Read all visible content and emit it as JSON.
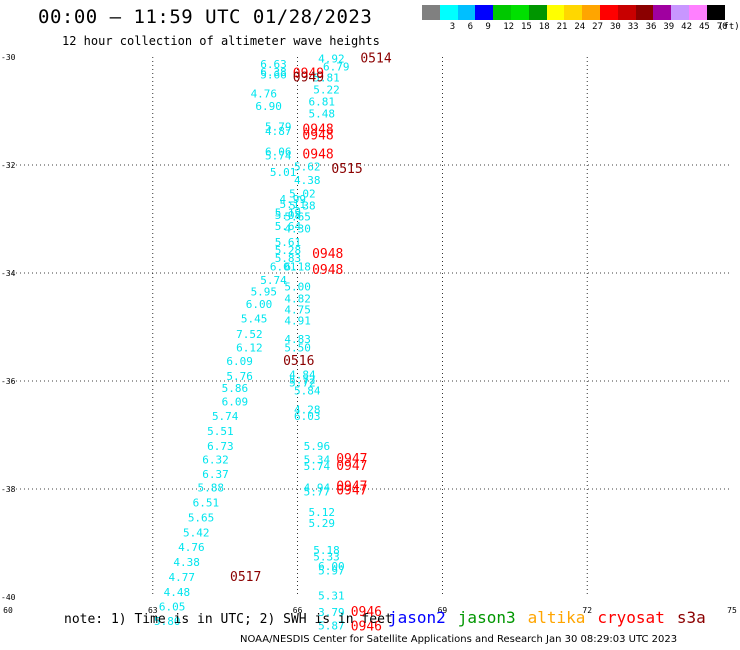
{
  "title": "00:00 – 11:59 UTC 01/28/2023",
  "subtitle": "12 hour collection of altimeter wave heights",
  "colorbar": {
    "unit": "(ft)",
    "bins": [
      {
        "label": "",
        "color": "#808080"
      },
      {
        "label": "3",
        "color": "#00ffff"
      },
      {
        "label": "6",
        "color": "#00bfff"
      },
      {
        "label": "9",
        "color": "#0000ff"
      },
      {
        "label": "12",
        "color": "#00c800"
      },
      {
        "label": "15",
        "color": "#00e000"
      },
      {
        "label": "18",
        "color": "#009600"
      },
      {
        "label": "21",
        "color": "#ffff00"
      },
      {
        "label": "24",
        "color": "#ffd700"
      },
      {
        "label": "27",
        "color": "#ffa500"
      },
      {
        "label": "30",
        "color": "#ff0000"
      },
      {
        "label": "33",
        "color": "#c80000"
      },
      {
        "label": "36",
        "color": "#8b0000"
      },
      {
        "label": "39",
        "color": "#a000a0"
      },
      {
        "label": "42",
        "color": "#c896ff"
      },
      {
        "label": "45",
        "color": "#ff80ff"
      },
      {
        "label": "70",
        "color": "#000000"
      }
    ]
  },
  "note": "note: 1) Time is in UTC; 2) SWH is in feet",
  "legend": [
    {
      "name": "jason2",
      "color": "#0000ff"
    },
    {
      "name": "jason3",
      "color": "#009600"
    },
    {
      "name": "altika",
      "color": "#ffa500"
    },
    {
      "name": "cryosat",
      "color": "#ff0000"
    },
    {
      "name": "s3a",
      "color": "#8b0000"
    }
  ],
  "footer": "NOAA/NESDIS Center for Satellite Applications and Research   Jan 30 08:29:03 UTC 2023",
  "chart_data": {
    "type": "scatter",
    "xlim": [
      60,
      75
    ],
    "ylim": [
      -40,
      -30
    ],
    "x_ticks": [
      "60",
      "63",
      "66",
      "69",
      "72",
      "75"
    ],
    "y_ticks": [
      "-30",
      "-32",
      "-34",
      "-36",
      "-38",
      "-40"
    ],
    "grid": true,
    "wave_color": "#00e5ee",
    "wave_heights": [
      {
        "x": 66.7,
        "y": -30.1,
        "label": "4.92"
      },
      {
        "x": 66.8,
        "y": -30.25,
        "label": "6.79"
      },
      {
        "x": 66.6,
        "y": -30.45,
        "label": "5.81"
      },
      {
        "x": 66.6,
        "y": -30.68,
        "label": "5.22"
      },
      {
        "x": 66.5,
        "y": -30.9,
        "label": "6.81"
      },
      {
        "x": 66.5,
        "y": -31.12,
        "label": "5.48"
      },
      {
        "x": 65.5,
        "y": -30.2,
        "label": "6.63"
      },
      {
        "x": 65.5,
        "y": -30.35,
        "label": "6.38"
      },
      {
        "x": 65.5,
        "y": -30.4,
        "label": "5.66"
      },
      {
        "x": 65.3,
        "y": -30.75,
        "label": "4.76"
      },
      {
        "x": 65.4,
        "y": -30.98,
        "label": "6.90"
      },
      {
        "x": 65.6,
        "y": -31.36,
        "label": "5.79"
      },
      {
        "x": 65.6,
        "y": -31.44,
        "label": "4.87"
      },
      {
        "x": 65.6,
        "y": -31.82,
        "label": "6.06"
      },
      {
        "x": 65.6,
        "y": -31.9,
        "label": "5.74"
      },
      {
        "x": 65.7,
        "y": -32.2,
        "label": "5.01"
      },
      {
        "x": 66.2,
        "y": -32.1,
        "label": "5.62"
      },
      {
        "x": 66.2,
        "y": -32.35,
        "label": "4.38"
      },
      {
        "x": 66.1,
        "y": -32.6,
        "label": "5.02"
      },
      {
        "x": 65.9,
        "y": -32.7,
        "label": "4.99"
      },
      {
        "x": 65.9,
        "y": -32.8,
        "label": "5.11"
      },
      {
        "x": 66.1,
        "y": -32.82,
        "label": "5.38"
      },
      {
        "x": 65.8,
        "y": -32.95,
        "label": "5.19"
      },
      {
        "x": 65.8,
        "y": -33.0,
        "label": "5.08"
      },
      {
        "x": 66.0,
        "y": -33.03,
        "label": "5.65"
      },
      {
        "x": 65.8,
        "y": -33.2,
        "label": "5.64"
      },
      {
        "x": 66.0,
        "y": -33.25,
        "label": "4.30"
      },
      {
        "x": 65.8,
        "y": -33.5,
        "label": "5.61"
      },
      {
        "x": 65.8,
        "y": -33.65,
        "label": "5.28"
      },
      {
        "x": 65.8,
        "y": -33.8,
        "label": "5.83"
      },
      {
        "x": 65.7,
        "y": -33.95,
        "label": "6.01"
      },
      {
        "x": 66.0,
        "y": -33.95,
        "label": "6.18"
      },
      {
        "x": 65.5,
        "y": -34.2,
        "label": "5.74"
      },
      {
        "x": 66.0,
        "y": -34.32,
        "label": "5.00"
      },
      {
        "x": 65.3,
        "y": -34.42,
        "label": "5.95"
      },
      {
        "x": 66.0,
        "y": -34.55,
        "label": "4.82"
      },
      {
        "x": 65.2,
        "y": -34.65,
        "label": "6.00"
      },
      {
        "x": 66.0,
        "y": -34.75,
        "label": "4.75"
      },
      {
        "x": 65.1,
        "y": -34.92,
        "label": "5.45"
      },
      {
        "x": 66.0,
        "y": -34.95,
        "label": "4.91"
      },
      {
        "x": 65.0,
        "y": -35.2,
        "label": "7.52"
      },
      {
        "x": 66.0,
        "y": -35.3,
        "label": "4.83"
      },
      {
        "x": 65.0,
        "y": -35.45,
        "label": "6.12"
      },
      {
        "x": 66.0,
        "y": -35.45,
        "label": "5.50"
      },
      {
        "x": 64.8,
        "y": -35.7,
        "label": "6.09"
      },
      {
        "x": 64.8,
        "y": -35.98,
        "label": "5.76"
      },
      {
        "x": 66.1,
        "y": -35.95,
        "label": "4.84"
      },
      {
        "x": 66.1,
        "y": -36.05,
        "label": "5.72"
      },
      {
        "x": 66.1,
        "y": -36.1,
        "label": "5.72"
      },
      {
        "x": 64.7,
        "y": -36.2,
        "label": "5.86"
      },
      {
        "x": 66.2,
        "y": -36.25,
        "label": "5.84"
      },
      {
        "x": 64.7,
        "y": -36.45,
        "label": "6.09"
      },
      {
        "x": 66.2,
        "y": -36.6,
        "label": "4.28"
      },
      {
        "x": 64.5,
        "y": -36.72,
        "label": "5.74"
      },
      {
        "x": 66.2,
        "y": -36.72,
        "label": "6.03"
      },
      {
        "x": 64.4,
        "y": -37.0,
        "label": "5.51"
      },
      {
        "x": 64.4,
        "y": -37.28,
        "label": "6.73"
      },
      {
        "x": 66.4,
        "y": -37.28,
        "label": "5.96"
      },
      {
        "x": 64.3,
        "y": -37.53,
        "label": "6.32"
      },
      {
        "x": 66.4,
        "y": -37.53,
        "label": "5.34"
      },
      {
        "x": 66.4,
        "y": -37.65,
        "label": "5.74"
      },
      {
        "x": 64.3,
        "y": -37.8,
        "label": "6.37"
      },
      {
        "x": 64.2,
        "y": -38.05,
        "label": "5.88"
      },
      {
        "x": 66.4,
        "y": -38.05,
        "label": "4.94"
      },
      {
        "x": 66.4,
        "y": -38.12,
        "label": "5.77"
      },
      {
        "x": 64.1,
        "y": -38.32,
        "label": "6.51"
      },
      {
        "x": 66.5,
        "y": -38.5,
        "label": "5.12"
      },
      {
        "x": 64.0,
        "y": -38.6,
        "label": "5.65"
      },
      {
        "x": 66.5,
        "y": -38.7,
        "label": "5.29"
      },
      {
        "x": 63.9,
        "y": -38.88,
        "label": "5.42"
      },
      {
        "x": 63.8,
        "y": -39.15,
        "label": "4.76"
      },
      {
        "x": 66.6,
        "y": -39.2,
        "label": "5.18"
      },
      {
        "x": 66.6,
        "y": -39.32,
        "label": "5.33"
      },
      {
        "x": 63.7,
        "y": -39.43,
        "label": "4.38"
      },
      {
        "x": 66.7,
        "y": -39.5,
        "label": "6.00"
      },
      {
        "x": 66.7,
        "y": -39.58,
        "label": "5.97"
      },
      {
        "x": 63.6,
        "y": -39.7,
        "label": "4.77"
      },
      {
        "x": 63.5,
        "y": -39.98,
        "label": "4.48"
      },
      {
        "x": 66.7,
        "y": -40.05,
        "label": "5.31"
      },
      {
        "x": 63.4,
        "y": -40.25,
        "label": "6.05"
      },
      {
        "x": 66.7,
        "y": -40.35,
        "label": "3.79"
      },
      {
        "x": 63.3,
        "y": -40.52,
        "label": "5.80"
      },
      {
        "x": 66.7,
        "y": -40.6,
        "label": "5.87"
      }
    ],
    "pass_times": [
      {
        "x": 67.3,
        "y": -30.1,
        "label": "0514",
        "color": "#8b0000"
      },
      {
        "x": 65.9,
        "y": -30.38,
        "label": "0949",
        "color": "#ff0000"
      },
      {
        "x": 65.9,
        "y": -30.45,
        "label": "0949",
        "color": "#8b0000"
      },
      {
        "x": 66.1,
        "y": -31.42,
        "label": "0948",
        "color": "#ff0000"
      },
      {
        "x": 66.1,
        "y": -31.53,
        "label": "0948",
        "color": "#ff0000"
      },
      {
        "x": 66.1,
        "y": -31.88,
        "label": "0948",
        "color": "#ff0000"
      },
      {
        "x": 66.7,
        "y": -32.15,
        "label": "0515",
        "color": "#8b0000"
      },
      {
        "x": 66.3,
        "y": -33.72,
        "label": "0948",
        "color": "#ff0000"
      },
      {
        "x": 66.3,
        "y": -34.02,
        "label": "0948",
        "color": "#ff0000"
      },
      {
        "x": 65.7,
        "y": -35.7,
        "label": "0516",
        "color": "#8b0000"
      },
      {
        "x": 66.8,
        "y": -37.52,
        "label": "0947",
        "color": "#ff0000"
      },
      {
        "x": 66.8,
        "y": -37.65,
        "label": "0947",
        "color": "#ff0000"
      },
      {
        "x": 66.8,
        "y": -38.03,
        "label": "0947",
        "color": "#ff0000"
      },
      {
        "x": 66.8,
        "y": -38.1,
        "label": "0947",
        "color": "#ff0000"
      },
      {
        "x": 64.6,
        "y": -39.7,
        "label": "0517",
        "color": "#8b0000"
      },
      {
        "x": 67.1,
        "y": -40.35,
        "label": "0946",
        "color": "#ff0000"
      },
      {
        "x": 67.1,
        "y": -40.62,
        "label": "0946",
        "color": "#ff0000"
      }
    ]
  }
}
